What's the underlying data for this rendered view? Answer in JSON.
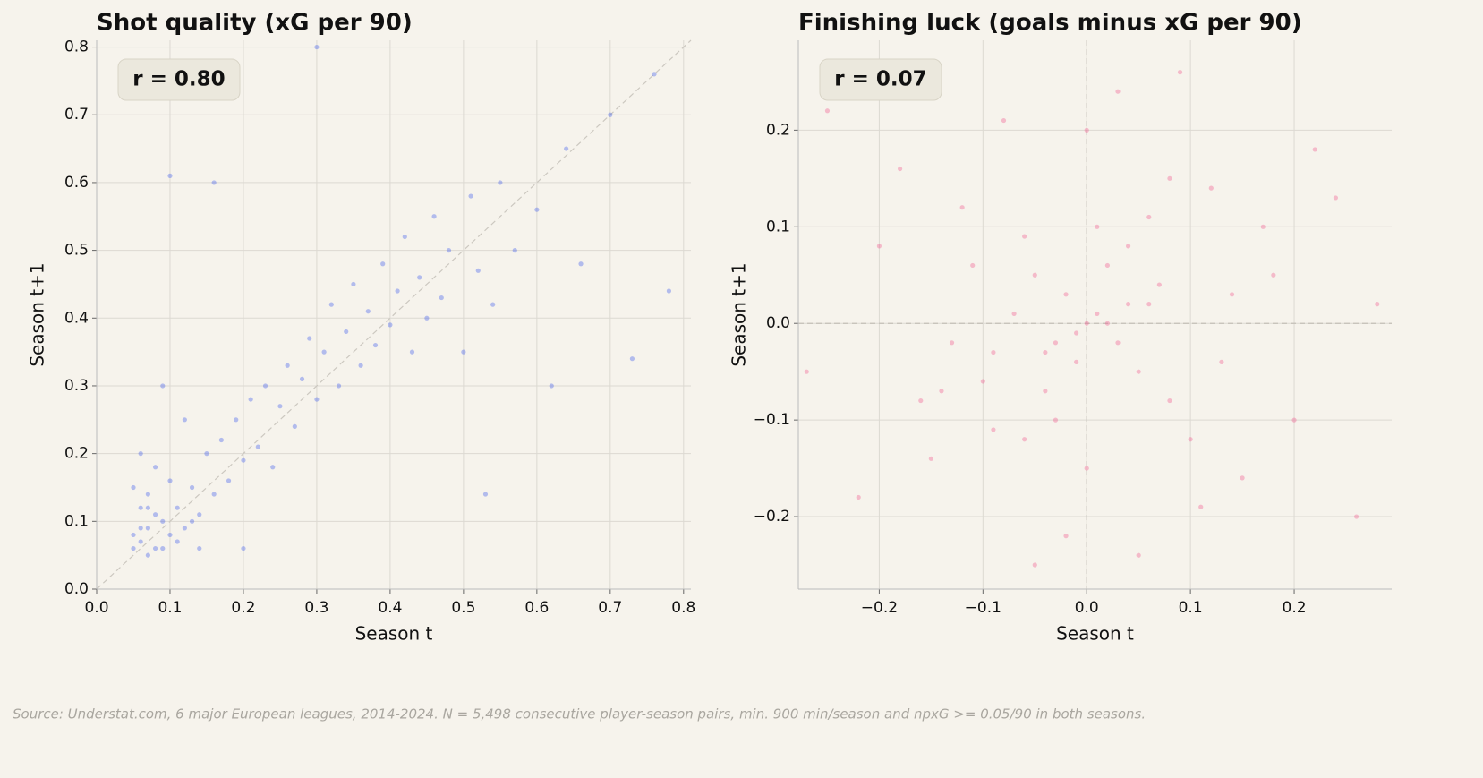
{
  "chart_data": [
    {
      "type": "scatter",
      "title": "Shot quality (xG per 90)",
      "xlabel": "Season t",
      "ylabel": "Season t+1",
      "annotation": "r = 0.80",
      "xlim": [
        0,
        0.81
      ],
      "ylim": [
        0,
        0.81
      ],
      "grid": true,
      "diagonal": true,
      "xticks": [
        {
          "value": 0,
          "label": "0.0"
        },
        0.1,
        0.2,
        0.3,
        0.4,
        0.5,
        0.6,
        0.7,
        0.8
      ],
      "yticks": [
        {
          "value": 0,
          "label": "0.0"
        },
        0.1,
        0.2,
        0.3,
        0.4,
        0.5,
        0.6,
        0.7,
        0.8
      ],
      "series": [
        {
          "color": "#3352ee",
          "x": [
            0.06,
            0.07,
            0.08,
            0.06,
            0.09,
            0.1,
            0.05,
            0.07,
            0.11,
            0.12,
            0.13,
            0.08,
            0.14,
            0.15,
            0.16,
            0.17,
            0.18,
            0.19,
            0.2,
            0.21,
            0.22,
            0.23,
            0.24,
            0.25,
            0.26,
            0.27,
            0.28,
            0.29,
            0.3,
            0.31,
            0.32,
            0.33,
            0.34,
            0.35,
            0.36,
            0.37,
            0.38,
            0.39,
            0.4,
            0.41,
            0.42,
            0.43,
            0.44,
            0.45,
            0.46,
            0.47,
            0.48,
            0.5,
            0.51,
            0.52,
            0.54,
            0.55,
            0.57,
            0.6,
            0.62,
            0.64,
            0.66,
            0.7,
            0.73,
            0.76,
            0.78,
            0.1,
            0.16,
            0.3,
            0.53,
            0.09,
            0.12,
            0.06,
            0.2,
            0.14,
            0.05,
            0.07,
            0.08,
            0.1,
            0.06,
            0.09,
            0.11,
            0.13,
            0.07,
            0.05
          ],
          "y": [
            0.07,
            0.09,
            0.06,
            0.12,
            0.1,
            0.08,
            0.06,
            0.14,
            0.12,
            0.09,
            0.15,
            0.18,
            0.11,
            0.2,
            0.14,
            0.22,
            0.16,
            0.25,
            0.19,
            0.28,
            0.21,
            0.3,
            0.18,
            0.27,
            0.33,
            0.24,
            0.31,
            0.37,
            0.28,
            0.35,
            0.42,
            0.3,
            0.38,
            0.45,
            0.33,
            0.41,
            0.36,
            0.48,
            0.39,
            0.44,
            0.52,
            0.35,
            0.46,
            0.4,
            0.55,
            0.43,
            0.5,
            0.35,
            0.58,
            0.47,
            0.42,
            0.6,
            0.5,
            0.56,
            0.3,
            0.65,
            0.48,
            0.7,
            0.34,
            0.76,
            0.44,
            0.61,
            0.6,
            0.8,
            0.14,
            0.3,
            0.25,
            0.2,
            0.06,
            0.06,
            0.08,
            0.05,
            0.11,
            0.16,
            0.09,
            0.06,
            0.07,
            0.1,
            0.12,
            0.15
          ]
        }
      ]
    },
    {
      "type": "scatter",
      "title": "Finishing luck (goals minus xG per 90)",
      "xlabel": "Season t",
      "ylabel": "Season t+1",
      "annotation": "r = 0.07",
      "xlim": [
        -0.278,
        0.294
      ],
      "ylim": [
        -0.275,
        0.293
      ],
      "grid": true,
      "zero_lines": true,
      "xticks": [
        {
          "value": -0.2,
          "label": "−0.2"
        },
        {
          "value": -0.1,
          "label": "−0.1"
        },
        {
          "value": 0,
          "label": "0.0"
        },
        0.1,
        0.2
      ],
      "yticks": [
        {
          "value": -0.2,
          "label": "−0.2"
        },
        {
          "value": -0.1,
          "label": "−0.1"
        },
        {
          "value": 0,
          "label": "0.0"
        },
        0.1,
        0.2
      ],
      "series": [
        {
          "color": "#f0508a",
          "x": [
            0.0,
            -0.02,
            0.03,
            -0.05,
            0.05,
            -0.01,
            0.02,
            -0.04,
            0.06,
            -0.07,
            0.08,
            -0.09,
            0.01,
            -0.03,
            0.04,
            -0.06,
            0.07,
            -0.1,
            0.1,
            -0.12,
            0.12,
            -0.15,
            0.15,
            -0.18,
            0.18,
            -0.22,
            0.22,
            -0.25,
            0.26,
            0.0,
            -0.02,
            0.03,
            0.05,
            -0.05,
            0.09,
            -0.08,
            0.11,
            -0.13,
            0.14,
            -0.16,
            0.2,
            -0.2,
            0.24,
            -0.27,
            0.28,
            0.02,
            -0.01,
            0.04,
            -0.04,
            0.06,
            -0.06,
            0.0,
            0.08,
            -0.09,
            0.13,
            -0.11,
            0.17,
            -0.14,
            0.01,
            -0.03
          ],
          "y": [
            0.0,
            0.03,
            -0.02,
            0.05,
            -0.05,
            -0.04,
            0.06,
            -0.07,
            0.02,
            0.01,
            -0.08,
            -0.03,
            0.1,
            -0.1,
            0.08,
            0.09,
            0.04,
            -0.06,
            -0.12,
            0.12,
            0.14,
            -0.14,
            -0.16,
            0.16,
            0.05,
            -0.18,
            0.18,
            0.22,
            -0.2,
            0.2,
            -0.22,
            0.24,
            -0.24,
            -0.25,
            0.26,
            0.21,
            -0.19,
            -0.02,
            0.03,
            -0.08,
            -0.1,
            0.08,
            0.13,
            -0.05,
            0.02,
            0.0,
            -0.01,
            0.02,
            -0.03,
            0.11,
            -0.12,
            -0.15,
            0.15,
            -0.11,
            -0.04,
            0.06,
            0.1,
            -0.07,
            0.01,
            -0.02
          ]
        }
      ]
    }
  ],
  "footnote": "Source: Understat.com, 6 major European leagues, 2014-2024. N = 5,498 consecutive player-season pairs, min. 900 min/season and npxG >= 0.05/90 in both seasons."
}
